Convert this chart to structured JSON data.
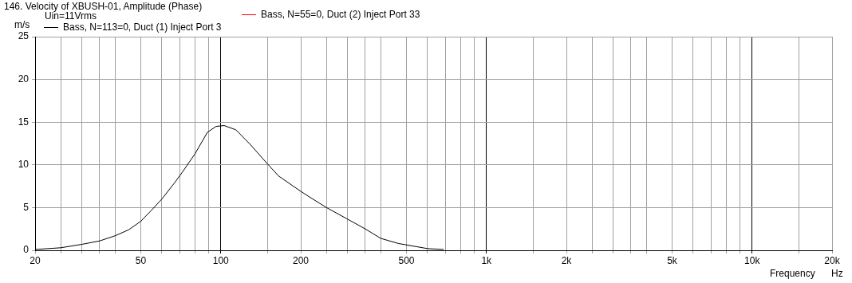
{
  "chart_data": {
    "type": "line",
    "title": "146. Velocity of XBUSH-01, Amplitude (Phase)",
    "subtitle": "Uin=11Vrms",
    "xlabel": "Frequency",
    "ylabel": "m/s",
    "annotations": [
      "Hz"
    ],
    "log": "x",
    "grid": true,
    "legend": "top",
    "marker": "none",
    "line_style": "solid",
    "xlim": [
      20,
      20000
    ],
    "ylim": [
      0,
      25
    ],
    "yticks": [
      0,
      5,
      10,
      15,
      20,
      25
    ],
    "xticks": [
      20,
      {
        "value": 25,
        "label": null
      },
      {
        "value": 30,
        "label": null
      },
      {
        "value": 35,
        "label": null
      },
      {
        "value": 40,
        "label": null
      },
      50,
      {
        "value": 60,
        "label": null
      },
      {
        "value": 70,
        "label": null
      },
      {
        "value": 80,
        "label": null
      },
      {
        "value": 90,
        "label": null
      },
      100,
      {
        "value": 150,
        "label": null
      },
      200,
      {
        "value": 250,
        "label": null
      },
      {
        "value": 300,
        "label": null
      },
      {
        "value": 350,
        "label": null
      },
      {
        "value": 400,
        "label": null
      },
      500,
      {
        "value": 600,
        "label": null
      },
      {
        "value": 700,
        "label": null
      },
      {
        "value": 800,
        "label": null
      },
      {
        "value": 900,
        "label": null
      },
      {
        "value": 1000,
        "label": "1k"
      },
      {
        "value": 1500,
        "label": null
      },
      {
        "value": 2000,
        "label": "2k"
      },
      {
        "value": 2500,
        "label": null
      },
      {
        "value": 3000,
        "label": null
      },
      {
        "value": 3500,
        "label": null
      },
      {
        "value": 4000,
        "label": null
      },
      {
        "value": 5000,
        "label": "5k"
      },
      {
        "value": 6000,
        "label": null
      },
      {
        "value": 7000,
        "label": null
      },
      {
        "value": 8000,
        "label": null
      },
      {
        "value": 9000,
        "label": null
      },
      {
        "value": 10000,
        "label": "10k"
      },
      {
        "value": 15000,
        "label": null
      },
      {
        "value": 20000,
        "label": "20k"
      }
    ],
    "x": [
      20,
      25,
      30,
      35,
      40,
      45,
      50,
      54.5,
      60,
      67,
      71.5,
      80,
      89,
      96,
      103,
      114,
      129,
      150,
      165,
      200,
      222,
      250,
      298,
      350,
      400,
      466,
      600,
      690
    ],
    "series": [
      {
        "name": "Bass, N=113=0, Duct (1) Inject Port 3",
        "color": "#000000",
        "values": [
          0.1,
          0.3,
          0.7,
          1.1,
          1.7,
          2.4,
          3.4,
          4.6,
          6.0,
          7.9,
          9.1,
          11.3,
          13.8,
          14.5,
          14.6,
          14.1,
          12.4,
          10.1,
          8.7,
          6.9,
          6.0,
          5.0,
          3.7,
          2.5,
          1.4,
          0.8,
          0.2,
          0.1
        ]
      },
      {
        "name": "Bass, N=55=0, Duct (2) Inject Port 33",
        "color": "#ff0000",
        "values": [
          null,
          null,
          null,
          null,
          null,
          null,
          null,
          null,
          null,
          null,
          null,
          null,
          null,
          null,
          null,
          null,
          null,
          null,
          null,
          null,
          null,
          null,
          null,
          null,
          null,
          null,
          null,
          null
        ]
      }
    ]
  }
}
